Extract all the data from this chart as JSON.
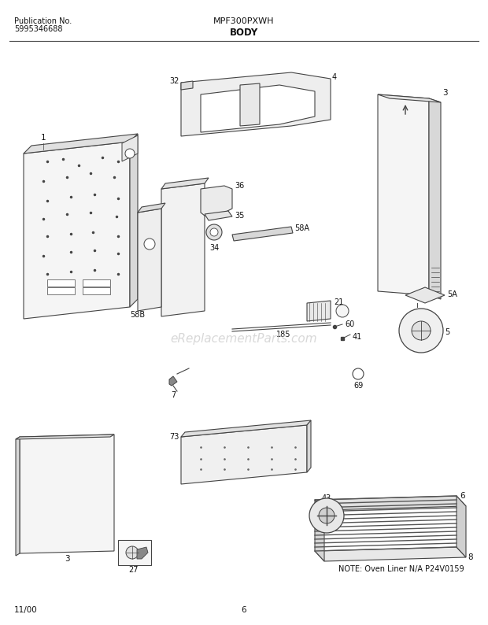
{
  "title": "MPF300PXWH",
  "subtitle": "BODY",
  "pub_label": "Publication No.",
  "pub_number": "5995346688",
  "date": "11/00",
  "page": "6",
  "watermark": "eReplacementParts.com",
  "note": "NOTE: Oven Liner N/A",
  "part_ref": "P24V0159",
  "bg_color": "#ffffff",
  "line_color": "#444444",
  "text_color": "#111111",
  "watermark_color": "#c8c8c8"
}
